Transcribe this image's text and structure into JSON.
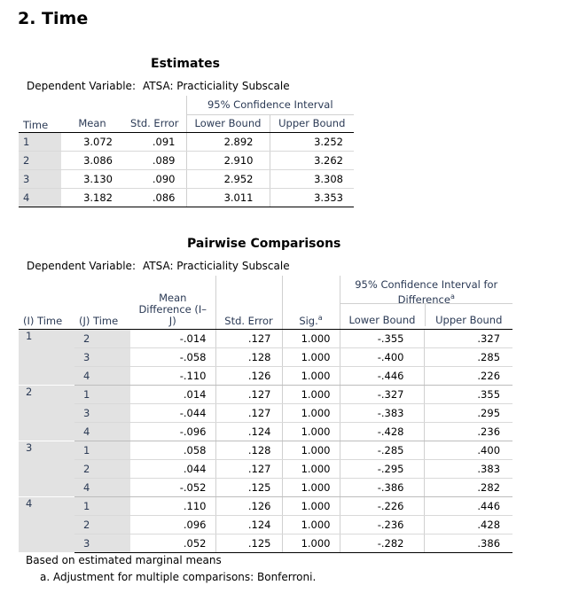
{
  "section_title": "2. Time",
  "estimates": {
    "title": "Estimates",
    "dep_var_label": "Dependent Variable:",
    "dep_var_value": "ATSA: Practiciality Subscale",
    "ci_header": "95% Confidence Interval",
    "columns": [
      "Time",
      "Mean",
      "Std. Error",
      "Lower Bound",
      "Upper Bound"
    ],
    "rows": [
      {
        "time": "1",
        "mean": "3.072",
        "se": ".091",
        "lb": "2.892",
        "ub": "3.252"
      },
      {
        "time": "2",
        "mean": "3.086",
        "se": ".089",
        "lb": "2.910",
        "ub": "3.262"
      },
      {
        "time": "3",
        "mean": "3.130",
        "se": ".090",
        "lb": "2.952",
        "ub": "3.308"
      },
      {
        "time": "4",
        "mean": "3.182",
        "se": ".086",
        "lb": "3.011",
        "ub": "3.353"
      }
    ]
  },
  "pairwise": {
    "title": "Pairwise Comparisons",
    "dep_var_label": "Dependent Variable:",
    "dep_var_value": "ATSA: Practiciality Subscale",
    "ci_header": "95% Confidence Interval for Difference",
    "ci_sup": "a",
    "col_i": "(I) Time",
    "col_j": "(J) Time",
    "col_md": "Mean Difference (I–J)",
    "col_se": "Std. Error",
    "col_sig": "Sig.",
    "sig_sup": "a",
    "col_lb": "Lower Bound",
    "col_ub": "Upper Bound",
    "groups": [
      {
        "i": "1",
        "rows": [
          {
            "j": "2",
            "md": "-.014",
            "se": ".127",
            "sig": "1.000",
            "lb": "-.355",
            "ub": ".327"
          },
          {
            "j": "3",
            "md": "-.058",
            "se": ".128",
            "sig": "1.000",
            "lb": "-.400",
            "ub": ".285"
          },
          {
            "j": "4",
            "md": "-.110",
            "se": ".126",
            "sig": "1.000",
            "lb": "-.446",
            "ub": ".226"
          }
        ]
      },
      {
        "i": "2",
        "rows": [
          {
            "j": "1",
            "md": ".014",
            "se": ".127",
            "sig": "1.000",
            "lb": "-.327",
            "ub": ".355"
          },
          {
            "j": "3",
            "md": "-.044",
            "se": ".127",
            "sig": "1.000",
            "lb": "-.383",
            "ub": ".295"
          },
          {
            "j": "4",
            "md": "-.096",
            "se": ".124",
            "sig": "1.000",
            "lb": "-.428",
            "ub": ".236"
          }
        ]
      },
      {
        "i": "3",
        "rows": [
          {
            "j": "1",
            "md": ".058",
            "se": ".128",
            "sig": "1.000",
            "lb": "-.285",
            "ub": ".400"
          },
          {
            "j": "2",
            "md": ".044",
            "se": ".127",
            "sig": "1.000",
            "lb": "-.295",
            "ub": ".383"
          },
          {
            "j": "4",
            "md": "-.052",
            "se": ".125",
            "sig": "1.000",
            "lb": "-.386",
            "ub": ".282"
          }
        ]
      },
      {
        "i": "4",
        "rows": [
          {
            "j": "1",
            "md": ".110",
            "se": ".126",
            "sig": "1.000",
            "lb": "-.226",
            "ub": ".446"
          },
          {
            "j": "2",
            "md": ".096",
            "se": ".124",
            "sig": "1.000",
            "lb": "-.236",
            "ub": ".428"
          },
          {
            "j": "3",
            "md": ".052",
            "se": ".125",
            "sig": "1.000",
            "lb": "-.282",
            "ub": ".386"
          }
        ]
      }
    ],
    "footnote_1": "Based on estimated marginal means",
    "footnote_2": "a. Adjustment for multiple comparisons: Bonferroni."
  }
}
